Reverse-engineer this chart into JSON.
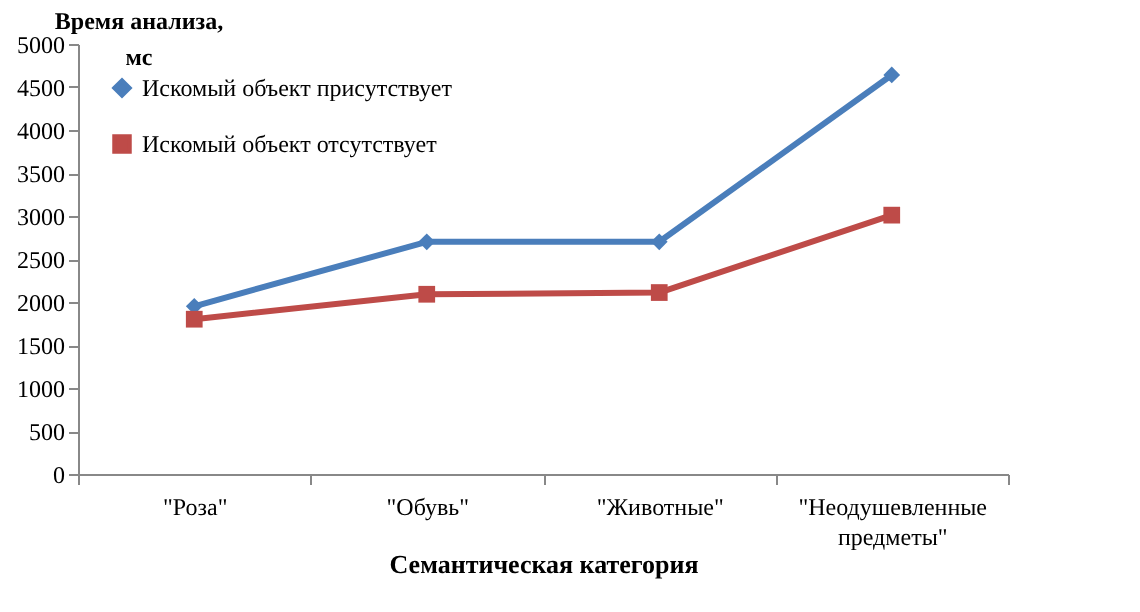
{
  "chart_data": {
    "type": "line",
    "xlabel": "Семантическая категория",
    "ylabel": "Время анализа,\nмс",
    "categories": [
      "\"Роза\"",
      "\"Обувь\"",
      "\"Животные\"",
      "\"Неодушевленные предметы\""
    ],
    "series": [
      {
        "name": "Искомый объект присутствует",
        "color": "#4a7ebb",
        "marker": "diamond",
        "values": [
          1950,
          2700,
          2700,
          4640
        ]
      },
      {
        "name": "Искомый объект отсутствует",
        "color": "#be4b48",
        "marker": "square",
        "values": [
          1800,
          2090,
          2110,
          3010
        ]
      }
    ],
    "ylim": [
      0,
      5000
    ],
    "yticks": [
      0,
      500,
      1000,
      1500,
      2000,
      2500,
      3000,
      3500,
      4000,
      4500,
      5000
    ],
    "grid": false,
    "legend": "top left",
    "line_style": "solid"
  }
}
